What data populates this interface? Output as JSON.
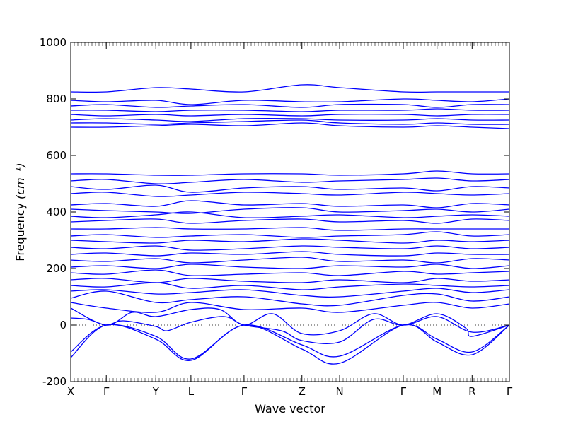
{
  "chart_data": {
    "type": "line",
    "title": "",
    "xlabel": "Wave vector",
    "ylabel": "Frequency",
    "ylabel_unit": "(cm⁻¹)",
    "ylim": [
      -200,
      1000
    ],
    "yticks": [
      -200,
      0,
      200,
      400,
      600,
      800,
      1000
    ],
    "xlim": [
      0,
      1
    ],
    "xticks": [
      {
        "label": "X",
        "pos": 0.0
      },
      {
        "label": "Γ",
        "pos": 0.081
      },
      {
        "label": "Y",
        "pos": 0.194
      },
      {
        "label": "L",
        "pos": 0.274
      },
      {
        "label": "Γ",
        "pos": 0.395
      },
      {
        "label": "Z",
        "pos": 0.527
      },
      {
        "label": "N",
        "pos": 0.613
      },
      {
        "label": "Γ",
        "pos": 0.758
      },
      {
        "label": "M",
        "pos": 0.835
      },
      {
        "label": "R",
        "pos": 0.915
      },
      {
        "label": "Γ",
        "pos": 1.0
      }
    ],
    "zero_line": {
      "y": 0,
      "style": "dotted"
    },
    "grid": false,
    "line_color": "#0000ff",
    "series": [
      {
        "x": [
          0,
          0.081,
          0.194,
          0.274,
          0.395,
          0.527,
          0.613,
          0.758,
          0.835,
          0.915,
          1.0
        ],
        "y": [
          -115,
          0,
          -50,
          -125,
          0,
          -85,
          -135,
          0,
          -60,
          -105,
          0
        ]
      },
      {
        "x": [
          0,
          0.081,
          0.194,
          0.274,
          0.395,
          0.527,
          0.613,
          0.758,
          0.835,
          0.915,
          1.0
        ],
        "y": [
          -95,
          0,
          -40,
          -120,
          0,
          -70,
          -110,
          0,
          -50,
          -95,
          0
        ]
      },
      {
        "x": [
          0,
          0.04,
          0.081,
          0.12,
          0.194,
          0.22,
          0.274,
          0.35,
          0.395,
          0.48,
          0.527,
          0.613,
          0.69,
          0.758,
          0.835,
          0.9,
          0.915,
          1.0
        ],
        "y": [
          25,
          20,
          0,
          15,
          -5,
          -20,
          10,
          30,
          0,
          -20,
          -55,
          -60,
          20,
          0,
          40,
          -10,
          -40,
          0
        ]
      },
      {
        "x": [
          0,
          0.081,
          0.14,
          0.194,
          0.274,
          0.34,
          0.395,
          0.46,
          0.527,
          0.613,
          0.69,
          0.758,
          0.835,
          0.915,
          1.0
        ],
        "y": [
          60,
          0,
          45,
          30,
          55,
          55,
          0,
          40,
          -30,
          -20,
          40,
          0,
          30,
          -25,
          0
        ]
      },
      {
        "x": [
          0,
          0.081,
          0.194,
          0.274,
          0.395,
          0.527,
          0.613,
          0.758,
          0.835,
          0.915,
          1.0
        ],
        "y": [
          80,
          60,
          45,
          80,
          55,
          60,
          45,
          70,
          80,
          60,
          75
        ]
      },
      {
        "x": [
          0,
          0.081,
          0.194,
          0.274,
          0.395,
          0.527,
          0.613,
          0.758,
          0.835,
          0.915,
          1.0
        ],
        "y": [
          95,
          120,
          80,
          90,
          100,
          75,
          70,
          105,
          110,
          85,
          100
        ]
      },
      {
        "x": [
          0,
          0.081,
          0.194,
          0.274,
          0.395,
          0.527,
          0.613,
          0.758,
          0.835,
          0.915,
          1.0
        ],
        "y": [
          120,
          125,
          110,
          115,
          125,
          105,
          100,
          120,
          130,
          115,
          125
        ]
      },
      {
        "x": [
          0,
          0.081,
          0.194,
          0.274,
          0.395,
          0.527,
          0.613,
          0.758,
          0.835,
          0.915,
          1.0
        ],
        "y": [
          140,
          135,
          150,
          130,
          140,
          125,
          135,
          145,
          140,
          135,
          140
        ]
      },
      {
        "x": [
          0,
          0.081,
          0.194,
          0.274,
          0.395,
          0.527,
          0.613,
          0.758,
          0.835,
          0.915,
          1.0
        ],
        "y": [
          160,
          165,
          150,
          165,
          155,
          150,
          160,
          150,
          165,
          155,
          160
        ]
      },
      {
        "x": [
          0,
          0.081,
          0.194,
          0.274,
          0.395,
          0.527,
          0.613,
          0.758,
          0.835,
          0.915,
          1.0
        ],
        "y": [
          185,
          180,
          195,
          175,
          180,
          185,
          175,
          190,
          180,
          185,
          190
        ]
      },
      {
        "x": [
          0,
          0.081,
          0.194,
          0.274,
          0.395,
          0.527,
          0.613,
          0.758,
          0.835,
          0.915,
          1.0
        ],
        "y": [
          205,
          210,
          200,
          215,
          205,
          200,
          210,
          205,
          215,
          200,
          210
        ]
      },
      {
        "x": [
          0,
          0.081,
          0.194,
          0.274,
          0.395,
          0.527,
          0.613,
          0.758,
          0.835,
          0.915,
          1.0
        ],
        "y": [
          230,
          225,
          235,
          220,
          230,
          240,
          225,
          230,
          220,
          235,
          230
        ]
      },
      {
        "x": [
          0,
          0.081,
          0.194,
          0.274,
          0.395,
          0.527,
          0.613,
          0.758,
          0.835,
          0.915,
          1.0
        ],
        "y": [
          250,
          255,
          245,
          255,
          250,
          260,
          250,
          245,
          255,
          250,
          250
        ]
      },
      {
        "x": [
          0,
          0.081,
          0.194,
          0.274,
          0.395,
          0.527,
          0.613,
          0.758,
          0.835,
          0.915,
          1.0
        ],
        "y": [
          275,
          270,
          280,
          265,
          270,
          280,
          275,
          270,
          280,
          270,
          275
        ]
      },
      {
        "x": [
          0,
          0.081,
          0.194,
          0.274,
          0.395,
          0.527,
          0.613,
          0.758,
          0.835,
          0.915,
          1.0
        ],
        "y": [
          300,
          295,
          290,
          300,
          295,
          305,
          300,
          290,
          300,
          295,
          300
        ]
      },
      {
        "x": [
          0,
          0.081,
          0.194,
          0.274,
          0.395,
          0.527,
          0.613,
          0.758,
          0.835,
          0.915,
          1.0
        ],
        "y": [
          315,
          320,
          310,
          315,
          320,
          310,
          315,
          320,
          330,
          315,
          320
        ]
      },
      {
        "x": [
          0,
          0.081,
          0.194,
          0.274,
          0.395,
          0.527,
          0.613,
          0.758,
          0.835,
          0.915,
          1.0
        ],
        "y": [
          340,
          340,
          345,
          340,
          340,
          345,
          335,
          340,
          340,
          340,
          340
        ]
      },
      {
        "x": [
          0,
          0.081,
          0.194,
          0.274,
          0.395,
          0.527,
          0.613,
          0.758,
          0.835,
          0.915,
          1.0
        ],
        "y": [
          365,
          370,
          375,
          360,
          370,
          375,
          365,
          370,
          360,
          375,
          370
        ]
      },
      {
        "x": [
          0,
          0.081,
          0.194,
          0.274,
          0.395,
          0.527,
          0.613,
          0.758,
          0.835,
          0.915,
          1.0
        ],
        "y": [
          385,
          380,
          390,
          400,
          380,
          385,
          390,
          380,
          385,
          390,
          385
        ]
      },
      {
        "x": [
          0,
          0.081,
          0.194,
          0.274,
          0.395,
          0.527,
          0.613,
          0.758,
          0.835,
          0.915,
          1.0
        ],
        "y": [
          410,
          405,
          400,
          395,
          410,
          415,
          400,
          405,
          410,
          400,
          410
        ]
      },
      {
        "x": [
          0,
          0.081,
          0.194,
          0.274,
          0.395,
          0.527,
          0.613,
          0.758,
          0.835,
          0.915,
          1.0
        ],
        "y": [
          425,
          430,
          420,
          440,
          425,
          430,
          420,
          425,
          415,
          430,
          425
        ]
      },
      {
        "x": [
          0,
          0.081,
          0.194,
          0.274,
          0.395,
          0.527,
          0.613,
          0.758,
          0.835,
          0.915,
          1.0
        ],
        "y": [
          465,
          470,
          455,
          460,
          470,
          465,
          460,
          470,
          465,
          460,
          465
        ]
      },
      {
        "x": [
          0,
          0.081,
          0.194,
          0.274,
          0.395,
          0.527,
          0.613,
          0.758,
          0.835,
          0.915,
          1.0
        ],
        "y": [
          490,
          480,
          495,
          470,
          485,
          490,
          480,
          485,
          475,
          490,
          485
        ]
      },
      {
        "x": [
          0,
          0.081,
          0.194,
          0.274,
          0.395,
          0.527,
          0.613,
          0.758,
          0.835,
          0.915,
          1.0
        ],
        "y": [
          510,
          515,
          500,
          505,
          515,
          505,
          510,
          515,
          520,
          510,
          515
        ]
      },
      {
        "x": [
          0,
          0.081,
          0.194,
          0.274,
          0.395,
          0.527,
          0.613,
          0.758,
          0.835,
          0.915,
          1.0
        ],
        "y": [
          535,
          535,
          530,
          530,
          535,
          535,
          530,
          535,
          545,
          535,
          535
        ]
      },
      {
        "x": [
          0,
          0.081,
          0.194,
          0.274,
          0.395,
          0.527,
          0.613,
          0.758,
          0.835,
          0.915,
          1.0
        ],
        "y": [
          700,
          700,
          705,
          710,
          705,
          715,
          705,
          700,
          705,
          700,
          695
        ]
      },
      {
        "x": [
          0,
          0.081,
          0.194,
          0.274,
          0.395,
          0.527,
          0.613,
          0.758,
          0.835,
          0.915,
          1.0
        ],
        "y": [
          715,
          715,
          710,
          715,
          720,
          725,
          715,
          710,
          715,
          710,
          710
        ]
      },
      {
        "x": [
          0,
          0.081,
          0.194,
          0.274,
          0.395,
          0.527,
          0.613,
          0.758,
          0.835,
          0.915,
          1.0
        ],
        "y": [
          725,
          730,
          725,
          720,
          730,
          730,
          725,
          725,
          730,
          725,
          725
        ]
      },
      {
        "x": [
          0,
          0.081,
          0.194,
          0.274,
          0.395,
          0.527,
          0.613,
          0.758,
          0.835,
          0.915,
          1.0
        ],
        "y": [
          745,
          740,
          745,
          740,
          745,
          740,
          745,
          745,
          740,
          745,
          745
        ]
      },
      {
        "x": [
          0,
          0.081,
          0.194,
          0.274,
          0.395,
          0.527,
          0.613,
          0.758,
          0.835,
          0.915,
          1.0
        ],
        "y": [
          760,
          760,
          755,
          760,
          760,
          755,
          760,
          760,
          765,
          760,
          760
        ]
      },
      {
        "x": [
          0,
          0.081,
          0.194,
          0.274,
          0.395,
          0.527,
          0.613,
          0.758,
          0.835,
          0.915,
          1.0
        ],
        "y": [
          775,
          780,
          770,
          775,
          780,
          770,
          780,
          780,
          770,
          780,
          780
        ]
      },
      {
        "x": [
          0,
          0.081,
          0.194,
          0.274,
          0.395,
          0.527,
          0.613,
          0.758,
          0.835,
          0.915,
          1.0
        ],
        "y": [
          795,
          790,
          795,
          780,
          795,
          790,
          790,
          800,
          795,
          790,
          800
        ]
      },
      {
        "x": [
          0,
          0.081,
          0.194,
          0.274,
          0.395,
          0.527,
          0.613,
          0.758,
          0.835,
          0.915,
          1.0
        ],
        "y": [
          825,
          825,
          840,
          835,
          825,
          850,
          840,
          825,
          825,
          825,
          825
        ]
      }
    ]
  }
}
